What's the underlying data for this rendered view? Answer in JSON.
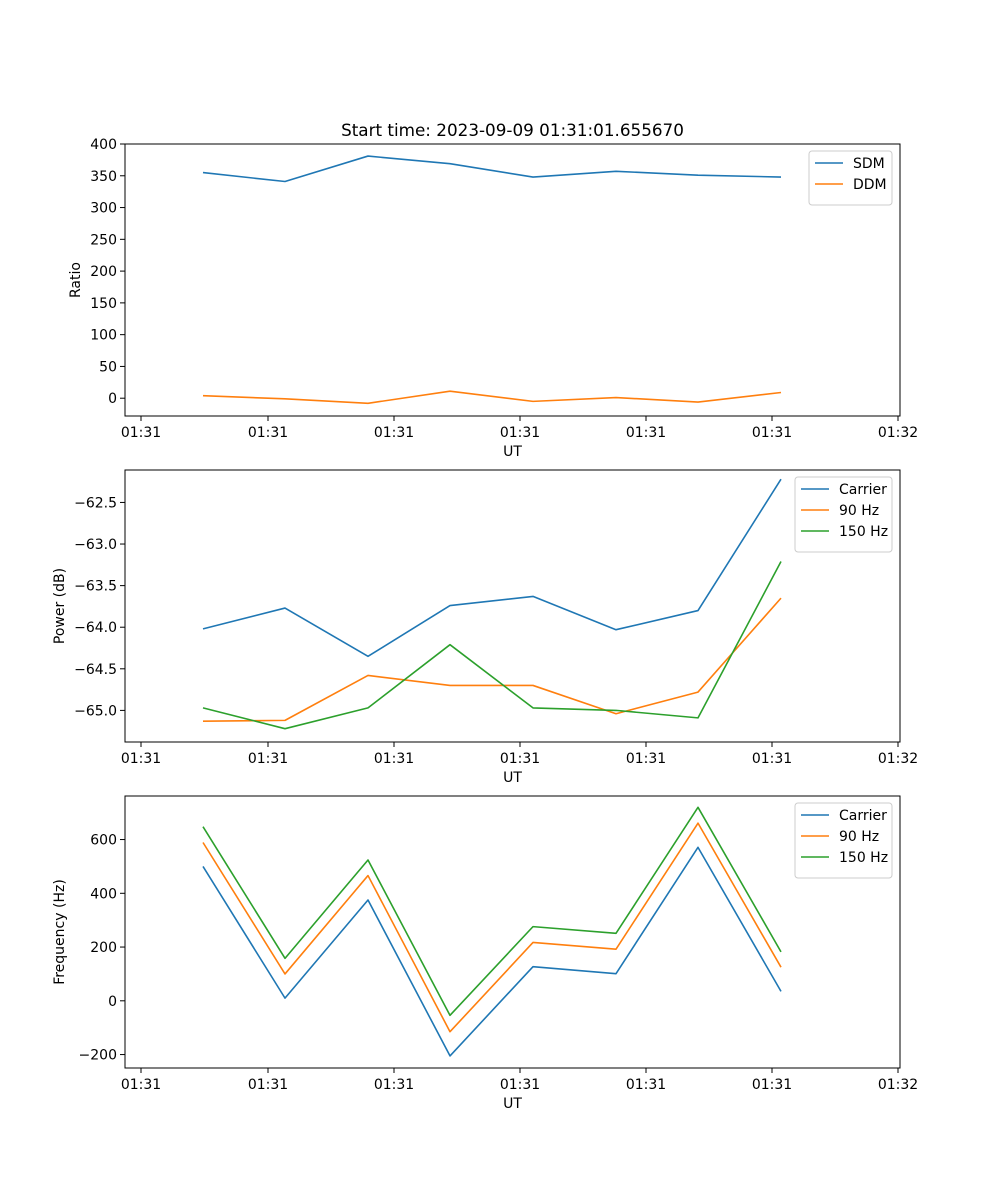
{
  "chart_data": [
    {
      "type": "line",
      "title": "Start time: 2023-09-09 01:31:01.655670",
      "xlabel": "UT",
      "ylabel": "Ratio",
      "x_tick_labels": [
        "01:31",
        "01:31",
        "01:31",
        "01:31",
        "01:31",
        "01:31",
        "01:31",
        "01:32"
      ],
      "y_ticks": [
        0,
        50,
        100,
        150,
        200,
        250,
        300,
        350,
        400
      ],
      "ylim": [
        -28,
        400
      ],
      "legend_position": "top-right",
      "series": [
        {
          "name": "SDM",
          "color": "#1f77b4",
          "values": [
            355,
            341,
            381,
            369,
            348,
            357,
            351,
            348
          ]
        },
        {
          "name": "DDM",
          "color": "#ff7f0e",
          "values": [
            4,
            -1,
            -8,
            11,
            -5,
            1,
            -6,
            9
          ]
        }
      ]
    },
    {
      "type": "line",
      "title": "",
      "xlabel": "UT",
      "ylabel": "Power (dB)",
      "x_tick_labels": [
        "01:31",
        "01:31",
        "01:31",
        "01:31",
        "01:31",
        "01:31",
        "01:31",
        "01:32"
      ],
      "y_ticks": [
        -62.5,
        -63.0,
        -63.5,
        -64.0,
        -64.5,
        -65.0
      ],
      "y_tick_labels": [
        "−62.5",
        "−63.0",
        "−63.5",
        "−64.0",
        "−64.5",
        "−65.0"
      ],
      "ylim": [
        -65.38,
        -62.11
      ],
      "legend_position": "top-right",
      "series": [
        {
          "name": "Carrier",
          "color": "#1f77b4",
          "values": [
            -64.02,
            -63.77,
            -64.35,
            -63.74,
            -63.63,
            -64.03,
            -63.8,
            -62.22
          ]
        },
        {
          "name": "90 Hz",
          "color": "#ff7f0e",
          "values": [
            -65.13,
            -65.12,
            -64.58,
            -64.7,
            -64.7,
            -65.04,
            -64.78,
            -63.65
          ]
        },
        {
          "name": "150 Hz",
          "color": "#2ca02c",
          "values": [
            -64.97,
            -65.22,
            -64.97,
            -64.21,
            -64.97,
            -65.0,
            -65.09,
            -63.21
          ]
        }
      ]
    },
    {
      "type": "line",
      "title": "",
      "xlabel": "UT",
      "ylabel": "Frequency (Hz)",
      "x_tick_labels": [
        "01:31",
        "01:31",
        "01:31",
        "01:31",
        "01:31",
        "01:31",
        "01:31",
        "01:32"
      ],
      "y_ticks": [
        -200,
        0,
        200,
        400,
        600
      ],
      "y_tick_labels": [
        "−200",
        "0",
        "200",
        "400",
        "600"
      ],
      "ylim": [
        -250,
        762
      ],
      "legend_position": "top-right",
      "series": [
        {
          "name": "Carrier",
          "color": "#1f77b4",
          "values": [
            500,
            10,
            375,
            -205,
            127,
            101,
            571,
            35
          ]
        },
        {
          "name": "90 Hz",
          "color": "#ff7f0e",
          "values": [
            589,
            100,
            466,
            -115,
            217,
            192,
            661,
            125
          ]
        },
        {
          "name": "150 Hz",
          "color": "#2ca02c",
          "values": [
            648,
            158,
            524,
            -54,
            276,
            251,
            720,
            182
          ]
        }
      ]
    }
  ]
}
